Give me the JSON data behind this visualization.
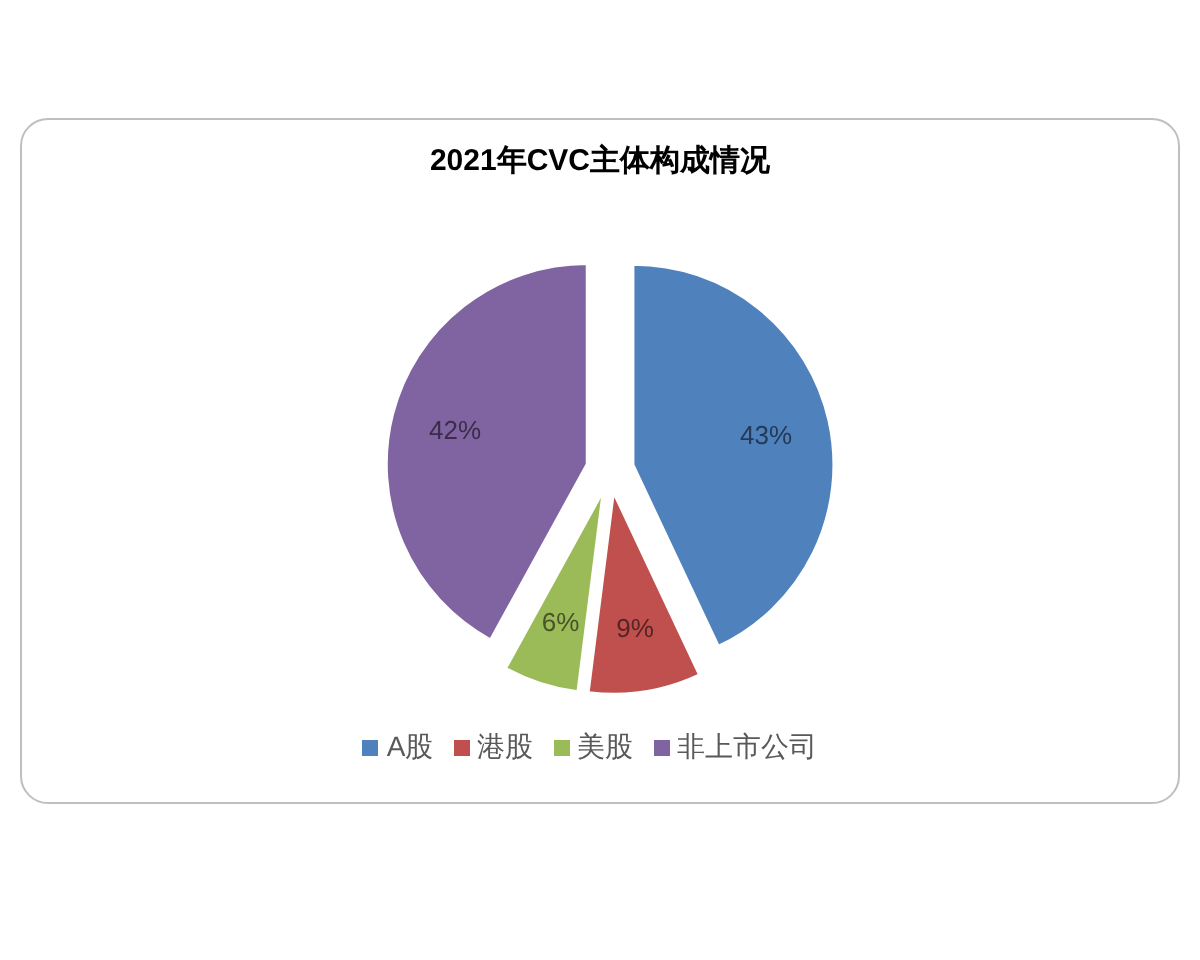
{
  "chart_data": {
    "type": "pie",
    "title": "2021年CVC主体构成情况",
    "categories": [
      "A股",
      "港股",
      "美股",
      "非上市公司"
    ],
    "values": [
      43,
      9,
      6,
      42
    ],
    "colors": [
      "#4f81bd",
      "#c0504d",
      "#9bbb59",
      "#8064a2"
    ],
    "value_labels": [
      "43%",
      "9%",
      "6%",
      "42%"
    ],
    "legend": "bottom"
  }
}
